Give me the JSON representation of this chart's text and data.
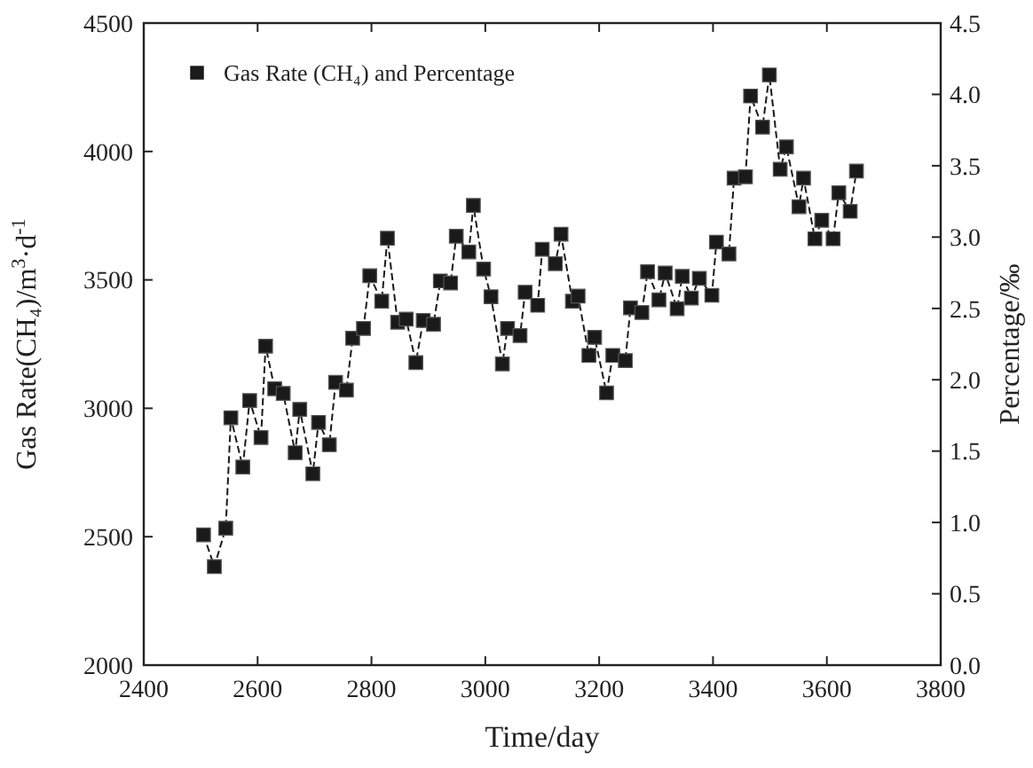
{
  "chart_data": {
    "type": "line",
    "xlabel": "Time/day",
    "ylabel": "Gas Rate(CH₄)/m$^{3}$·d$^{-1}$",
    "y2label": "Percentage/‰",
    "xlim": [
      2400,
      3800
    ],
    "xticks": [
      2400,
      2600,
      2800,
      3000,
      3200,
      3400,
      3600,
      3800
    ],
    "ylim": [
      2000,
      4500
    ],
    "yticks": [
      2000,
      2500,
      3000,
      3500,
      4000,
      4500
    ],
    "y2lim": [
      0,
      4.5
    ],
    "y2ticks": [
      {
        "value": 0,
        "label": "0.0"
      },
      {
        "value": 0.5,
        "label": "0.5"
      },
      {
        "value": 1,
        "label": "1.0"
      },
      {
        "value": 1.5,
        "label": "1.5"
      },
      {
        "value": 2,
        "label": "2.0"
      },
      {
        "value": 2.5,
        "label": "2.5"
      },
      {
        "value": 3,
        "label": "3.0"
      },
      {
        "value": 3.5,
        "label": "3.5"
      },
      {
        "value": 4,
        "label": "4.0"
      },
      {
        "value": 4.5,
        "label": "4.5"
      }
    ],
    "marker": "square",
    "line_style": "dashed",
    "legend": "top left",
    "grid": false,
    "x": [
      2505,
      2524,
      2544,
      2553,
      2574,
      2586,
      2606,
      2614,
      2630,
      2645,
      2666,
      2674,
      2697,
      2707,
      2726,
      2737,
      2756,
      2767,
      2786,
      2797,
      2818,
      2828,
      2846,
      2861,
      2878,
      2891,
      2909,
      2921,
      2939,
      2949,
      2971,
      2979,
      2997,
      3010,
      3030,
      3039,
      3061,
      3070,
      3092,
      3100,
      3123,
      3133,
      3153,
      3163,
      3182,
      3192,
      3213,
      3224,
      3246,
      3255,
      3275,
      3285,
      3305,
      3316,
      3337,
      3346,
      3362,
      3376,
      3398,
      3406,
      3428,
      3437,
      3457,
      3466,
      3487,
      3499,
      3518,
      3529,
      3551,
      3559,
      3579,
      3591,
      3611,
      3621,
      3641,
      3652
    ],
    "series": [
      {
        "name": "Gas Rate (CH₄) and Percentage",
        "color": "#1a1a1a",
        "values": [
          2507,
          2384,
          2533,
          2963,
          2771,
          3030,
          2886,
          3242,
          3076,
          3058,
          2827,
          2996,
          2745,
          2945,
          2858,
          3101,
          3071,
          3273,
          3311,
          3516,
          3417,
          3662,
          3335,
          3347,
          3178,
          3342,
          3327,
          3496,
          3488,
          3670,
          3609,
          3790,
          3542,
          3434,
          3173,
          3311,
          3283,
          3452,
          3401,
          3619,
          3563,
          3678,
          3417,
          3437,
          3206,
          3276,
          3060,
          3206,
          3186,
          3391,
          3373,
          3532,
          3422,
          3527,
          3388,
          3514,
          3429,
          3506,
          3440,
          3647,
          3601,
          3896,
          3901,
          4216,
          4095,
          4298,
          3931,
          4018,
          3785,
          3896,
          3660,
          3732,
          3660,
          3839,
          3767,
          3924
        ]
      }
    ]
  }
}
